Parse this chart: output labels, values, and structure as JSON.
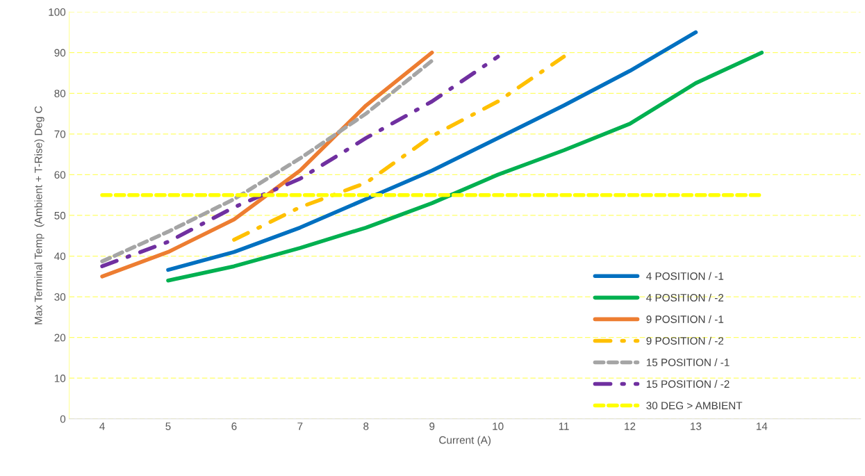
{
  "chart_data": {
    "type": "line",
    "xlabel": "Current (A)",
    "ylabel": "Max Terminal Temp  (Ambient + T-Rise) Deg C",
    "xlim": [
      3.5,
      15.5
    ],
    "xticks": [
      4,
      5,
      6,
      7,
      8,
      9,
      10,
      11,
      12,
      13,
      14
    ],
    "ylim": [
      0,
      100
    ],
    "yticks": [
      0,
      10,
      20,
      30,
      40,
      50,
      60,
      70,
      80,
      90,
      100
    ],
    "grid": "y",
    "legend": "bottom right",
    "marker": "none",
    "series": [
      {
        "name": "4 POSITION / -1",
        "color": "#0070c0",
        "line_style": "solid",
        "x": [
          5,
          6,
          7,
          8,
          9,
          10,
          11,
          12,
          13
        ],
        "values": [
          36.6,
          41,
          47,
          54,
          61,
          69,
          77,
          85.5,
          95
        ]
      },
      {
        "name": "4 POSITION / -2",
        "color": "#00b050",
        "line_style": "solid",
        "x": [
          5,
          6,
          7,
          8,
          9,
          10,
          11,
          12,
          13,
          14
        ],
        "values": [
          34,
          37.5,
          42,
          47,
          53,
          60,
          66,
          72.5,
          82.5,
          90
        ]
      },
      {
        "name": "9 POSITION / -1",
        "color": "#ed7d31",
        "line_style": "solid",
        "x": [
          4,
          5,
          6,
          7,
          8,
          9
        ],
        "values": [
          35,
          41,
          49,
          61,
          77,
          90
        ]
      },
      {
        "name": "9 POSITION / -2",
        "color": "#ffc000",
        "line_style": "dashdot",
        "x": [
          6,
          7,
          8,
          9,
          10,
          11
        ],
        "values": [
          44,
          52,
          58,
          69.5,
          78,
          89
        ]
      },
      {
        "name": "15 POSITION / -1",
        "color": "#a5a5a5",
        "line_style": "dashed",
        "x": [
          4,
          5,
          6,
          7,
          8,
          9
        ],
        "values": [
          38.7,
          46,
          54,
          64,
          75,
          88
        ]
      },
      {
        "name": "15 POSITION / -2",
        "color": "#7030a0",
        "line_style": "dashdot",
        "x": [
          4,
          5,
          6,
          7,
          8,
          9,
          10
        ],
        "values": [
          37.5,
          43.5,
          52,
          59,
          69,
          78,
          89
        ]
      },
      {
        "name": "30 DEG > AMBIENT",
        "color": "#ffff00",
        "line_style": "dashed",
        "x": [
          4,
          5,
          6,
          7,
          8,
          9,
          10,
          11,
          12,
          13,
          14
        ],
        "values": [
          55,
          55,
          55,
          55,
          55,
          55,
          55,
          55,
          55,
          55,
          55
        ]
      }
    ]
  }
}
